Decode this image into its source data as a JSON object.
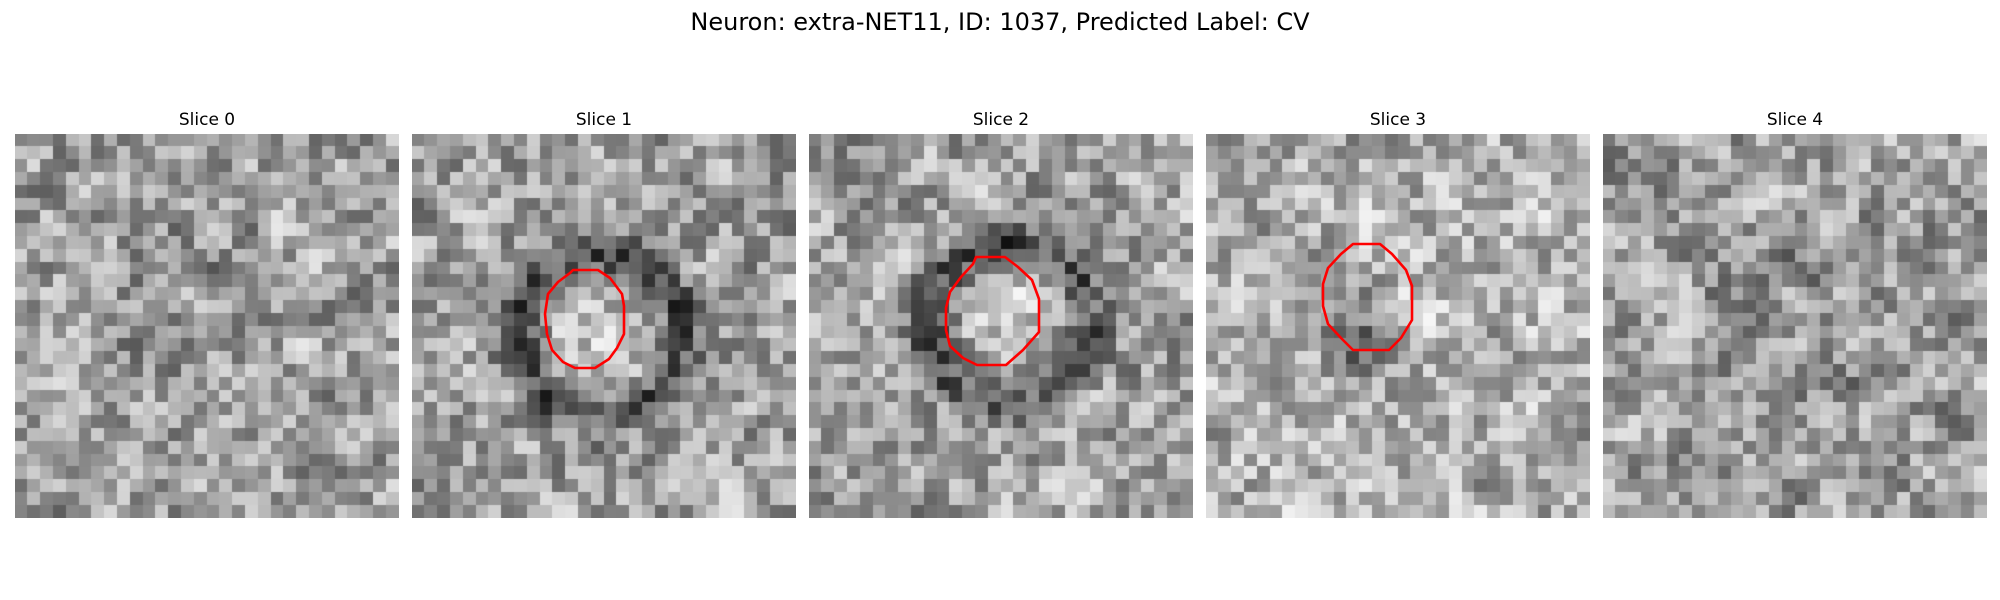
{
  "title": "Neuron: extra-NET11, ID: 1037, Predicted Label: CV",
  "panels": [
    {
      "label": "Slice 0",
      "contour": false
    },
    {
      "label": "Slice 1",
      "contour": true
    },
    {
      "label": "Slice 2",
      "contour": true
    },
    {
      "label": "Slice 3",
      "contour": true
    },
    {
      "label": "Slice 4",
      "contour": false
    }
  ],
  "colors": {
    "contour": "#ff0000",
    "colormap": "gray"
  }
}
